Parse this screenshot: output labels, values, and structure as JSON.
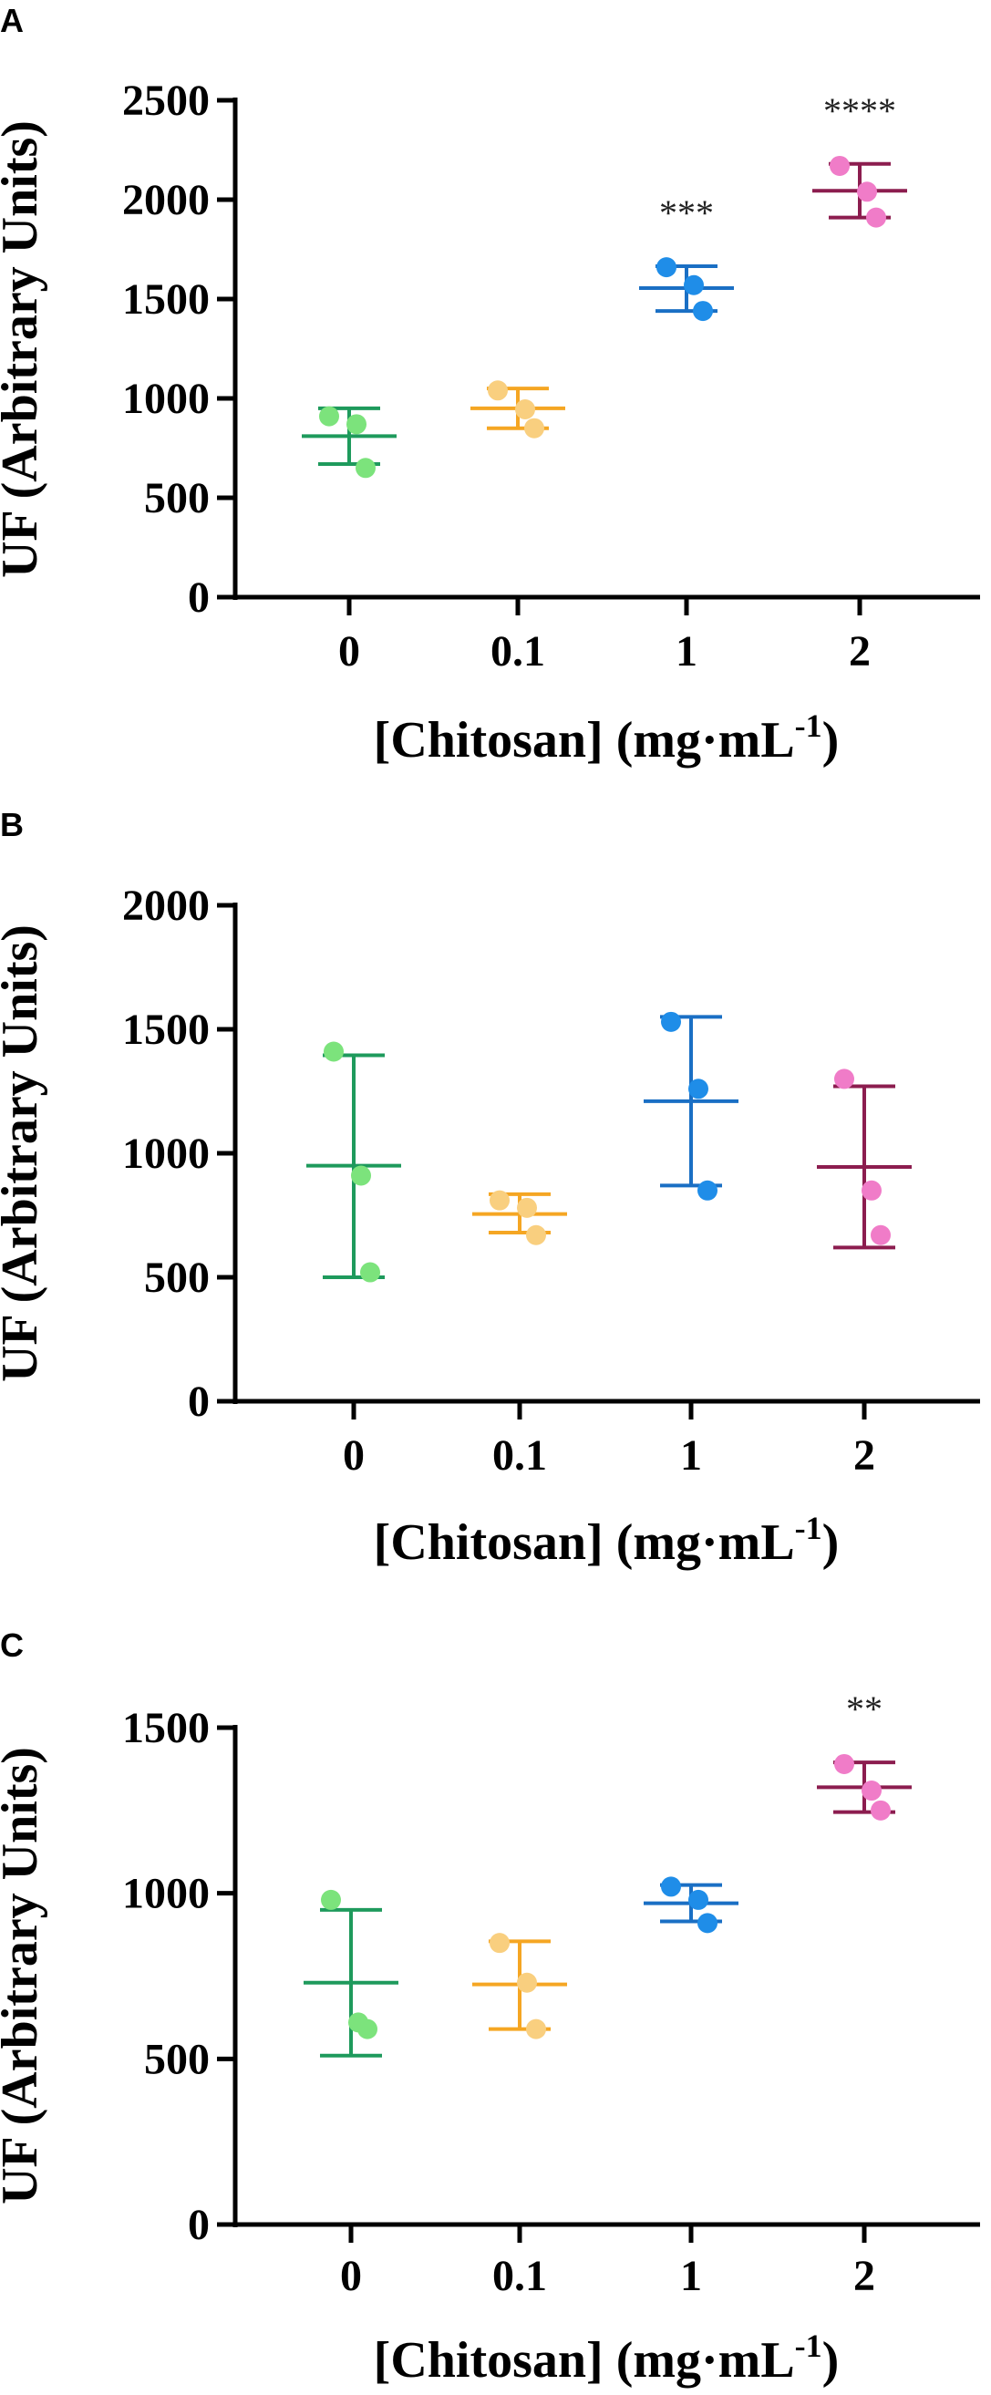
{
  "figure": {
    "panels": [
      {
        "label": "A"
      },
      {
        "label": "B"
      },
      {
        "label": "C"
      }
    ]
  },
  "chart_data": [
    {
      "type": "scatter",
      "title": "",
      "xlabel": "[Chitosan] (mg·mL",
      "xlabel_sup": "-1",
      "xlabel_close": ")",
      "ylabel": "UF (Arbitrary Units)",
      "ylim": [
        0,
        2500
      ],
      "yticks": [
        0,
        500,
        1000,
        1500,
        2000,
        2500
      ],
      "categories": [
        "0",
        "0.1",
        "1",
        "2"
      ],
      "groups": [
        {
          "category": "0",
          "points": [
            910,
            870,
            650
          ],
          "mean": 810,
          "sd_low": 670,
          "sd_high": 950,
          "significance": ""
        },
        {
          "category": "0.1",
          "points": [
            1040,
            945,
            850
          ],
          "mean": 950,
          "sd_low": 850,
          "sd_high": 1050,
          "significance": ""
        },
        {
          "category": "1",
          "points": [
            1660,
            1570,
            1440
          ],
          "mean": 1555,
          "sd_low": 1440,
          "sd_high": 1665,
          "significance": "***"
        },
        {
          "category": "2",
          "points": [
            2170,
            2040,
            1910
          ],
          "mean": 2045,
          "sd_low": 1910,
          "sd_high": 2180,
          "significance": "****"
        }
      ]
    },
    {
      "type": "scatter",
      "title": "",
      "xlabel": "[Chitosan] (mg·mL",
      "xlabel_sup": "-1",
      "xlabel_close": ")",
      "ylabel": "UF (Arbitrary Units)",
      "ylim": [
        0,
        2000
      ],
      "yticks": [
        0,
        500,
        1000,
        1500,
        2000
      ],
      "categories": [
        "0",
        "0.1",
        "1",
        "2"
      ],
      "groups": [
        {
          "category": "0",
          "points": [
            1410,
            910,
            520
          ],
          "mean": 950,
          "sd_low": 500,
          "sd_high": 1395,
          "significance": ""
        },
        {
          "category": "0.1",
          "points": [
            810,
            780,
            670
          ],
          "mean": 755,
          "sd_low": 680,
          "sd_high": 835,
          "significance": ""
        },
        {
          "category": "1",
          "points": [
            1530,
            1260,
            850
          ],
          "mean": 1210,
          "sd_low": 870,
          "sd_high": 1550,
          "significance": ""
        },
        {
          "category": "2",
          "points": [
            1300,
            850,
            670
          ],
          "mean": 945,
          "sd_low": 620,
          "sd_high": 1270,
          "significance": ""
        }
      ]
    },
    {
      "type": "scatter",
      "title": "",
      "xlabel": "[Chitosan] (mg·mL",
      "xlabel_sup": "-1",
      "xlabel_close": ")",
      "ylabel": "UF (Arbitrary Units)",
      "ylim": [
        0,
        1500
      ],
      "yticks": [
        0,
        500,
        1000,
        1500
      ],
      "categories": [
        "0",
        "0.1",
        "1",
        "2"
      ],
      "groups": [
        {
          "category": "0",
          "points": [
            980,
            610,
            590
          ],
          "mean": 730,
          "sd_low": 510,
          "sd_high": 950,
          "significance": ""
        },
        {
          "category": "0.1",
          "points": [
            850,
            730,
            590
          ],
          "mean": 725,
          "sd_low": 590,
          "sd_high": 855,
          "significance": ""
        },
        {
          "category": "1",
          "points": [
            1020,
            980,
            910
          ],
          "mean": 970,
          "sd_low": 915,
          "sd_high": 1025,
          "significance": ""
        },
        {
          "category": "2",
          "points": [
            1390,
            1310,
            1250
          ],
          "mean": 1320,
          "sd_low": 1245,
          "sd_high": 1395,
          "significance": "**"
        }
      ]
    }
  ],
  "colors": {
    "groups": [
      {
        "line": "#1e9a5c",
        "point": "#7ce37c"
      },
      {
        "line": "#f5a623",
        "point": "#f9cf7f"
      },
      {
        "line": "#1a6fc4",
        "point": "#1f8de8"
      },
      {
        "line": "#8c1d4f",
        "point": "#f07cc8"
      }
    ],
    "axis": "#000000"
  }
}
